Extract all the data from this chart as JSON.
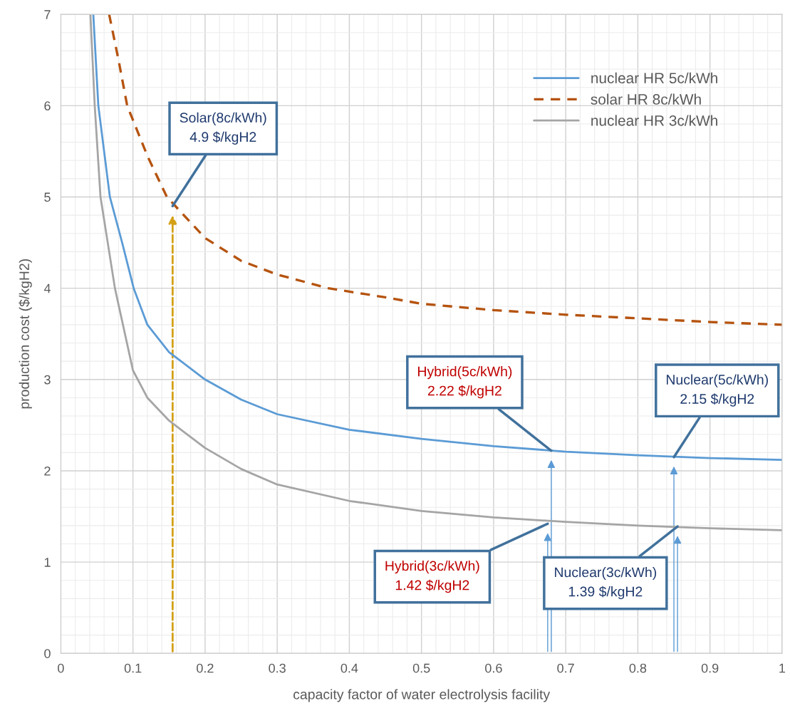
{
  "chart_data": {
    "type": "line",
    "xlabel": "capacity factor of water electrolysis facility",
    "ylabel": "production cost ($/kgH2)",
    "xlim": [
      0,
      1
    ],
    "ylim": [
      0,
      7
    ],
    "xticks": [
      0,
      0.1,
      0.2,
      0.3,
      0.4,
      0.5,
      0.6,
      0.7,
      0.8,
      0.9,
      1
    ],
    "yticks": [
      0,
      1,
      2,
      3,
      4,
      5,
      6,
      7
    ],
    "grid": true,
    "legend": "top right",
    "series": [
      {
        "name": "nuclear HR 5c/kWh",
        "color": "#5b9bd5",
        "line_style": "solid",
        "x": [
          0.045,
          0.052,
          0.068,
          0.085,
          0.101,
          0.12,
          0.15,
          0.2,
          0.25,
          0.3,
          0.4,
          0.5,
          0.6,
          0.7,
          0.8,
          0.9,
          1.0
        ],
        "values": [
          7,
          6,
          5,
          4.5,
          4.0,
          3.6,
          3.3,
          3.0,
          2.78,
          2.62,
          2.45,
          2.35,
          2.27,
          2.21,
          2.17,
          2.14,
          2.12
        ]
      },
      {
        "name": "solar HR 8c/kWh",
        "color": "#b5530f",
        "line_style": "dashed",
        "x": [
          0.067,
          0.08,
          0.092,
          0.12,
          0.147,
          0.2,
          0.25,
          0.3,
          0.371,
          0.45,
          0.5,
          0.6,
          0.7,
          0.8,
          0.9,
          1.0
        ],
        "values": [
          7,
          6.5,
          6,
          5.45,
          5,
          4.55,
          4.3,
          4.15,
          4.0,
          3.9,
          3.83,
          3.76,
          3.71,
          3.67,
          3.63,
          3.6
        ]
      },
      {
        "name": "nuclear HR 3c/kWh",
        "color": "#a5a5a5",
        "line_style": "solid",
        "x": [
          0.041,
          0.047,
          0.055,
          0.075,
          0.1,
          0.12,
          0.15,
          0.2,
          0.25,
          0.3,
          0.4,
          0.5,
          0.6,
          0.7,
          0.8,
          0.9,
          1.0
        ],
        "values": [
          7,
          6,
          5,
          4,
          3.1,
          2.8,
          2.55,
          2.25,
          2.02,
          1.85,
          1.67,
          1.56,
          1.49,
          1.44,
          1.4,
          1.37,
          1.35
        ]
      }
    ],
    "annotations": [
      {
        "text": "Solar(8c/kWh)\n4.9 $/kgH2",
        "x": 0.155,
        "y": 4.9
      },
      {
        "text": "Hybrid(5c/kWh)\n2.22 $/kgH2",
        "x": 0.68,
        "y": 2.22
      },
      {
        "text": "Nuclear(5c/kWh)\n2.15 $/kgH2",
        "x": 0.85,
        "y": 2.15
      },
      {
        "text": "Hybrid(3c/kWh)\n1.42 $/kgH2",
        "x": 0.675,
        "y": 1.42
      },
      {
        "text": "Nuclear(3c/kWh)\n1.39 $/kgH2",
        "x": 0.855,
        "y": 1.39
      }
    ]
  }
}
